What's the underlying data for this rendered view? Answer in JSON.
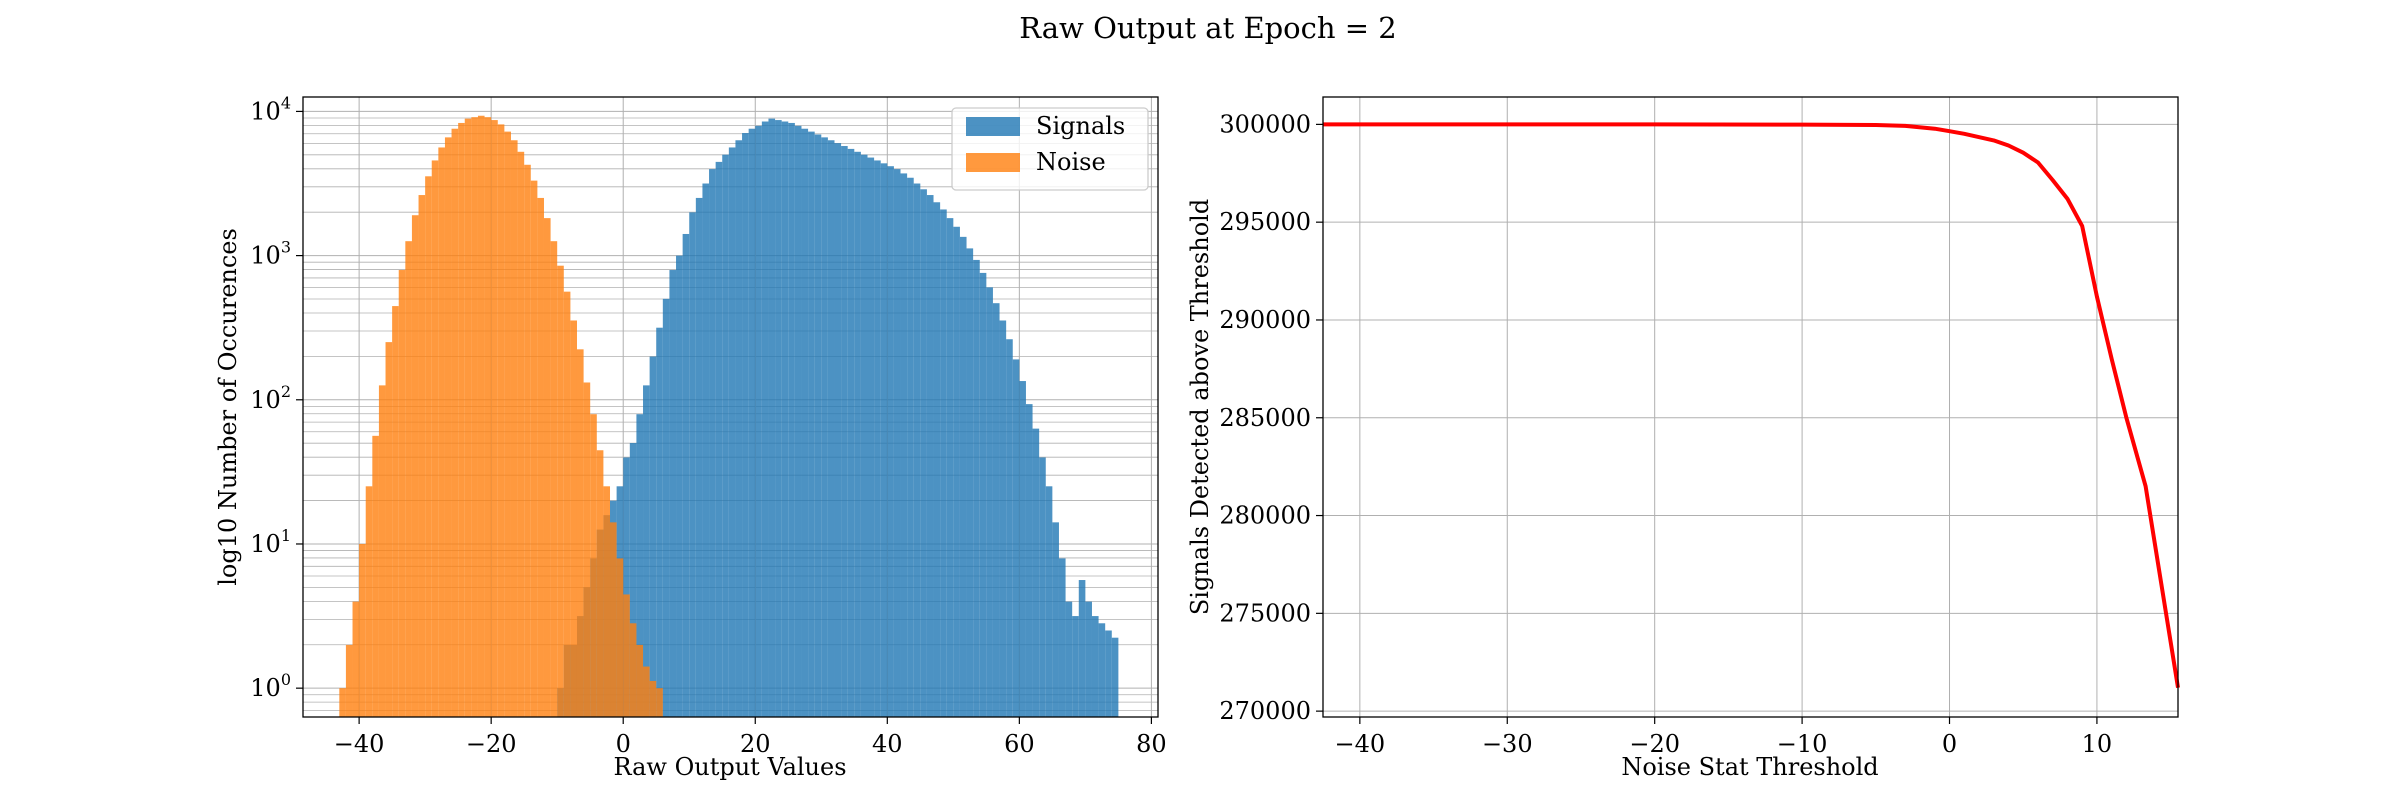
{
  "figure": {
    "title": "Raw Output at Epoch = 2"
  },
  "chart_data": [
    {
      "type": "bar",
      "subtype": "histogram",
      "title": "",
      "xlabel": "Raw Output Values",
      "ylabel": "log10 Number of Occurences",
      "xlim": [
        -48.5,
        81
      ],
      "ylim_log10": [
        -0.2,
        4.1
      ],
      "yscale": "log",
      "grid": true,
      "grid_minor": true,
      "legend": "top-right",
      "x_ticks": [
        "−40",
        "−20",
        "0",
        "20",
        "40",
        "60",
        "80"
      ],
      "x_tick_values": [
        -40,
        -20,
        0,
        20,
        40,
        60,
        80
      ],
      "y_ticks": [
        {
          "base": "10",
          "exp": "0",
          "value": 1
        },
        {
          "base": "10",
          "exp": "1",
          "value": 10
        },
        {
          "base": "10",
          "exp": "2",
          "value": 100
        },
        {
          "base": "10",
          "exp": "3",
          "value": 1000
        },
        {
          "base": "10",
          "exp": "4",
          "value": 10000
        }
      ],
      "bin_width": 1,
      "series": [
        {
          "name": "Signals",
          "color": "#1f77b4",
          "opacity": 0.8,
          "bins_start": -10,
          "peak": {
            "center": 24,
            "count": 9000
          },
          "log10_counts": [
            0,
            0.3,
            0.3,
            0.5,
            0.7,
            0.9,
            1.1,
            1.2,
            1.3,
            1.4,
            1.6,
            1.7,
            1.9,
            2.1,
            2.3,
            2.5,
            2.7,
            2.9,
            3.0,
            3.15,
            3.3,
            3.4,
            3.5,
            3.6,
            3.65,
            3.7,
            3.75,
            3.8,
            3.85,
            3.88,
            3.9,
            3.93,
            3.95,
            3.94,
            3.93,
            3.92,
            3.9,
            3.88,
            3.86,
            3.84,
            3.82,
            3.8,
            3.78,
            3.76,
            3.74,
            3.72,
            3.7,
            3.68,
            3.66,
            3.64,
            3.62,
            3.6,
            3.57,
            3.54,
            3.5,
            3.46,
            3.42,
            3.37,
            3.32,
            3.26,
            3.2,
            3.13,
            3.05,
            2.97,
            2.88,
            2.78,
            2.67,
            2.55,
            2.42,
            2.28,
            2.13,
            1.97,
            1.8,
            1.6,
            1.4,
            1.15,
            0.9,
            0.6,
            0.5,
            0.75,
            0.6,
            0.5,
            0.45,
            0.4,
            0.35
          ]
        },
        {
          "name": "Noise",
          "color": "#ff7f0e",
          "opacity": 0.8,
          "bins_start": -43,
          "peak": {
            "center": -20,
            "count": 9000
          },
          "log10_counts": [
            0,
            0.3,
            0.6,
            1,
            1.4,
            1.75,
            2.1,
            2.4,
            2.65,
            2.9,
            3.1,
            3.28,
            3.42,
            3.55,
            3.66,
            3.75,
            3.82,
            3.88,
            3.92,
            3.95,
            3.96,
            3.97,
            3.96,
            3.94,
            3.91,
            3.86,
            3.8,
            3.72,
            3.63,
            3.52,
            3.4,
            3.26,
            3.1,
            2.93,
            2.75,
            2.55,
            2.35,
            2.12,
            1.9,
            1.65,
            1.4,
            1.15,
            0.9,
            0.65,
            0.45,
            0.3,
            0.15,
            0.05,
            0
          ]
        }
      ]
    },
    {
      "type": "line",
      "title": "",
      "xlabel": "Noise Stat Threshold",
      "ylabel": "Signals Detected above Threshold",
      "xlim": [
        -42.5,
        15.5
      ],
      "ylim": [
        269700,
        301400
      ],
      "grid": true,
      "x_ticks": [
        "−40",
        "−30",
        "−20",
        "−10",
        "0",
        "10"
      ],
      "x_tick_values": [
        -40,
        -30,
        -20,
        -10,
        0,
        10
      ],
      "y_ticks": [
        "270000",
        "275000",
        "280000",
        "285000",
        "290000",
        "295000",
        "300000"
      ],
      "y_tick_values": [
        270000,
        275000,
        280000,
        285000,
        290000,
        295000,
        300000
      ],
      "series": [
        {
          "color": "#ff0000",
          "x": [
            -42.5,
            -30,
            -20,
            -10,
            -5,
            -3,
            -1,
            0,
            1,
            3,
            4,
            5,
            6,
            7,
            8,
            9,
            10,
            11,
            12,
            13.3,
            15.5
          ],
          "y": [
            300000,
            300000,
            300000,
            299990,
            299970,
            299920,
            299780,
            299650,
            299520,
            299180,
            298920,
            298550,
            298050,
            297150,
            296200,
            294800,
            291200,
            288000,
            285000,
            281500,
            271200
          ]
        }
      ]
    }
  ]
}
